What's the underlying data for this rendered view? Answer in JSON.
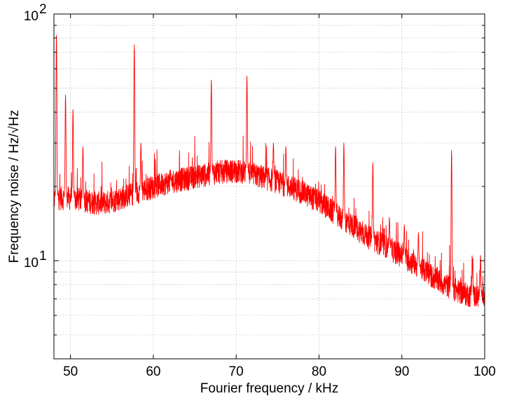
{
  "chart_data": {
    "type": "line",
    "xlabel": "Fourier frequency / kHz",
    "ylabel": "Frequency noise / Hz/√Hz",
    "xlim": [
      48,
      100
    ],
    "ylim": [
      4,
      100
    ],
    "yscale": "log",
    "grid": true,
    "x_ticks": [
      {
        "value": 50,
        "label": "50"
      },
      {
        "value": 60,
        "label": "60"
      },
      {
        "value": 70,
        "label": "70"
      },
      {
        "value": 80,
        "label": "80"
      },
      {
        "value": 90,
        "label": "90"
      },
      {
        "value": 100,
        "label": "100"
      }
    ],
    "y_ticks": [
      {
        "value": 10,
        "base": "10",
        "exp": "1"
      },
      {
        "value": 100,
        "base": "10",
        "exp": "2"
      }
    ],
    "series": [
      {
        "color": "#ff0000",
        "x": [
          48.0,
          49,
          50,
          51,
          52,
          53,
          54,
          55,
          56,
          57,
          58,
          59,
          60,
          61,
          62,
          63,
          64,
          65,
          66,
          67,
          68,
          69,
          70,
          71,
          72,
          73,
          74,
          75,
          76,
          77,
          78,
          79,
          80,
          81,
          82,
          83,
          84,
          85,
          86,
          87,
          88,
          89,
          90,
          91,
          92,
          93,
          94,
          95,
          96,
          97,
          98,
          99,
          100
        ],
        "y": [
          18,
          18,
          18,
          17.8,
          17.5,
          17.2,
          17.2,
          17.5,
          18,
          18.5,
          19,
          19.5,
          20,
          20.5,
          21,
          21.3,
          21.6,
          22,
          22.3,
          22.6,
          23,
          23.2,
          23.2,
          23,
          22.5,
          22,
          21.5,
          21,
          20.2,
          19.7,
          19,
          18.2,
          17.5,
          16.5,
          15.5,
          14.7,
          14,
          13.2,
          12.5,
          12,
          11.5,
          11,
          10.5,
          10,
          9.5,
          9,
          8.5,
          8.1,
          7.8,
          7.5,
          7.3,
          7.2,
          7.1
        ],
        "peaks": [
          {
            "x": 48.3,
            "y": 82
          },
          {
            "x": 49.4,
            "y": 47
          },
          {
            "x": 50.3,
            "y": 41
          },
          {
            "x": 51.5,
            "y": 29
          },
          {
            "x": 57.7,
            "y": 75
          },
          {
            "x": 58.5,
            "y": 30
          },
          {
            "x": 67.0,
            "y": 54
          },
          {
            "x": 71.3,
            "y": 56
          },
          {
            "x": 74.5,
            "y": 30
          },
          {
            "x": 76.0,
            "y": 29
          },
          {
            "x": 82.0,
            "y": 29
          },
          {
            "x": 83.0,
            "y": 30
          },
          {
            "x": 86.5,
            "y": 25
          },
          {
            "x": 88.5,
            "y": 15
          },
          {
            "x": 90.3,
            "y": 14
          },
          {
            "x": 92.0,
            "y": 13
          },
          {
            "x": 96.0,
            "y": 28
          },
          {
            "x": 98.5,
            "y": 10.2
          },
          {
            "x": 99.5,
            "y": 10.5
          }
        ]
      }
    ]
  }
}
